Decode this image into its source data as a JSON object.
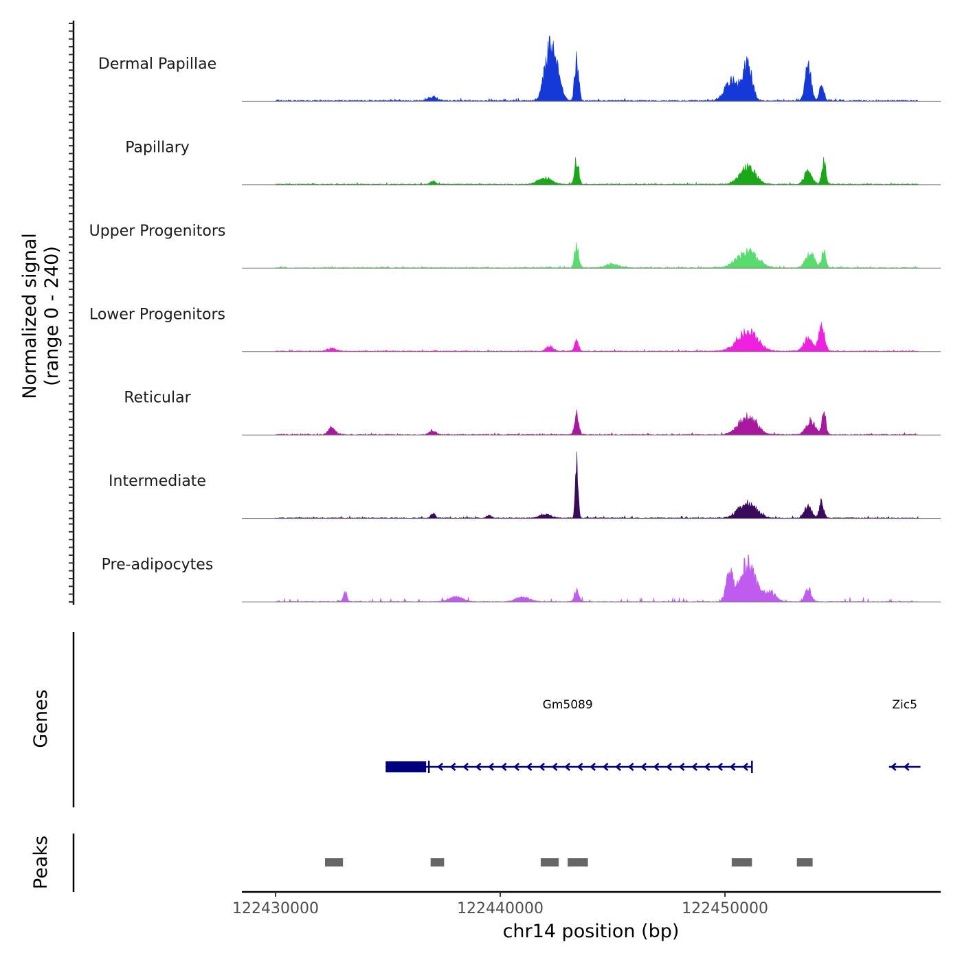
{
  "chart_data": {
    "type": "area",
    "title": "",
    "ylabel": "Normalized signal",
    "ylabel_range": "(range 0 - 240)",
    "ylim": [
      0,
      240
    ],
    "xlabel": "chr14 position (bp)",
    "xlim": [
      122428500,
      122459600
    ],
    "xticks": [
      122430000,
      122440000,
      122450000
    ],
    "xtick_labels": [
      "122430000",
      "122440000",
      "122450000"
    ],
    "series": [
      {
        "name": "Dermal Papillae",
        "color": "#1538d8",
        "baseline": 4,
        "noise": 7,
        "peaks": [
          [
            122442200,
            200,
            230
          ],
          [
            122442550,
            70,
            200
          ],
          [
            122443400,
            160,
            90
          ],
          [
            122451000,
            150,
            200
          ],
          [
            122450300,
            80,
            300
          ],
          [
            122453700,
            140,
            130
          ],
          [
            122454300,
            60,
            100
          ],
          [
            122437000,
            15,
            200
          ]
        ]
      },
      {
        "name": "Papillary",
        "color": "#1aa818",
        "baseline": 3,
        "noise": 5,
        "peaks": [
          [
            122443400,
            100,
            90
          ],
          [
            122442000,
            25,
            300
          ],
          [
            122451000,
            70,
            350
          ],
          [
            122453700,
            55,
            160
          ],
          [
            122454400,
            90,
            90
          ],
          [
            122437000,
            15,
            100
          ]
        ]
      },
      {
        "name": "Upper Progenitors",
        "color": "#58dc6e",
        "baseline": 3,
        "noise": 5,
        "peaks": [
          [
            122443400,
            90,
            90
          ],
          [
            122451000,
            65,
            450
          ],
          [
            122453800,
            55,
            200
          ],
          [
            122454400,
            75,
            90
          ],
          [
            122445000,
            15,
            300
          ]
        ]
      },
      {
        "name": "Lower Progenitors",
        "color": "#f020e0",
        "baseline": 3,
        "noise": 5,
        "peaks": [
          [
            122451000,
            80,
            450
          ],
          [
            122453700,
            50,
            200
          ],
          [
            122454300,
            95,
            130
          ],
          [
            122443400,
            40,
            90
          ],
          [
            122442200,
            20,
            150
          ],
          [
            122432500,
            12,
            200
          ]
        ]
      },
      {
        "name": "Reticular",
        "color": "#a8189e",
        "baseline": 3,
        "noise": 6,
        "peaks": [
          [
            122443400,
            85,
            90
          ],
          [
            122451000,
            70,
            400
          ],
          [
            122453800,
            55,
            200
          ],
          [
            122454400,
            85,
            90
          ],
          [
            122432500,
            30,
            150
          ],
          [
            122437000,
            15,
            150
          ]
        ]
      },
      {
        "name": "Intermediate",
        "color": "#3a0b5c",
        "baseline": 3,
        "noise": 6,
        "peaks": [
          [
            122443400,
            230,
            60
          ],
          [
            122451000,
            60,
            400
          ],
          [
            122453700,
            50,
            150
          ],
          [
            122454300,
            65,
            100
          ],
          [
            122442000,
            15,
            250
          ],
          [
            122437000,
            15,
            100
          ],
          [
            122439500,
            12,
            100
          ]
        ]
      },
      {
        "name": "Pre-adipocytes",
        "color": "#c05bf0",
        "baseline": 2,
        "noise": 14,
        "peaks": [
          [
            122451000,
            150,
            350
          ],
          [
            122450200,
            110,
            150
          ],
          [
            122452000,
            40,
            250
          ],
          [
            122453700,
            55,
            130
          ],
          [
            122443400,
            45,
            100
          ],
          [
            122433100,
            40,
            80
          ],
          [
            122438000,
            20,
            300
          ],
          [
            122441000,
            20,
            300
          ]
        ]
      }
    ],
    "genes_label": "Genes",
    "genes": [
      {
        "name": "Gm5089",
        "start": 122434900,
        "end": 122451200,
        "strand": "-",
        "exons": [
          [
            122434900,
            122436700
          ]
        ],
        "name_x": 122443000
      },
      {
        "name": "Zic5",
        "start": 122457300,
        "end": 122458700,
        "strand": "-",
        "exons": [],
        "name_x": 122458000
      }
    ],
    "peaks_label": "Peaks",
    "peaks": [
      [
        122432200,
        122433000
      ],
      [
        122436900,
        122437500
      ],
      [
        122441800,
        122442600
      ],
      [
        122443000,
        122443900
      ],
      [
        122450300,
        122451200
      ],
      [
        122453200,
        122453900
      ]
    ],
    "colors": {
      "gene": "#00007f",
      "peak": "#666666",
      "axis": "#000000",
      "baseline": "#7f7f7f"
    }
  }
}
